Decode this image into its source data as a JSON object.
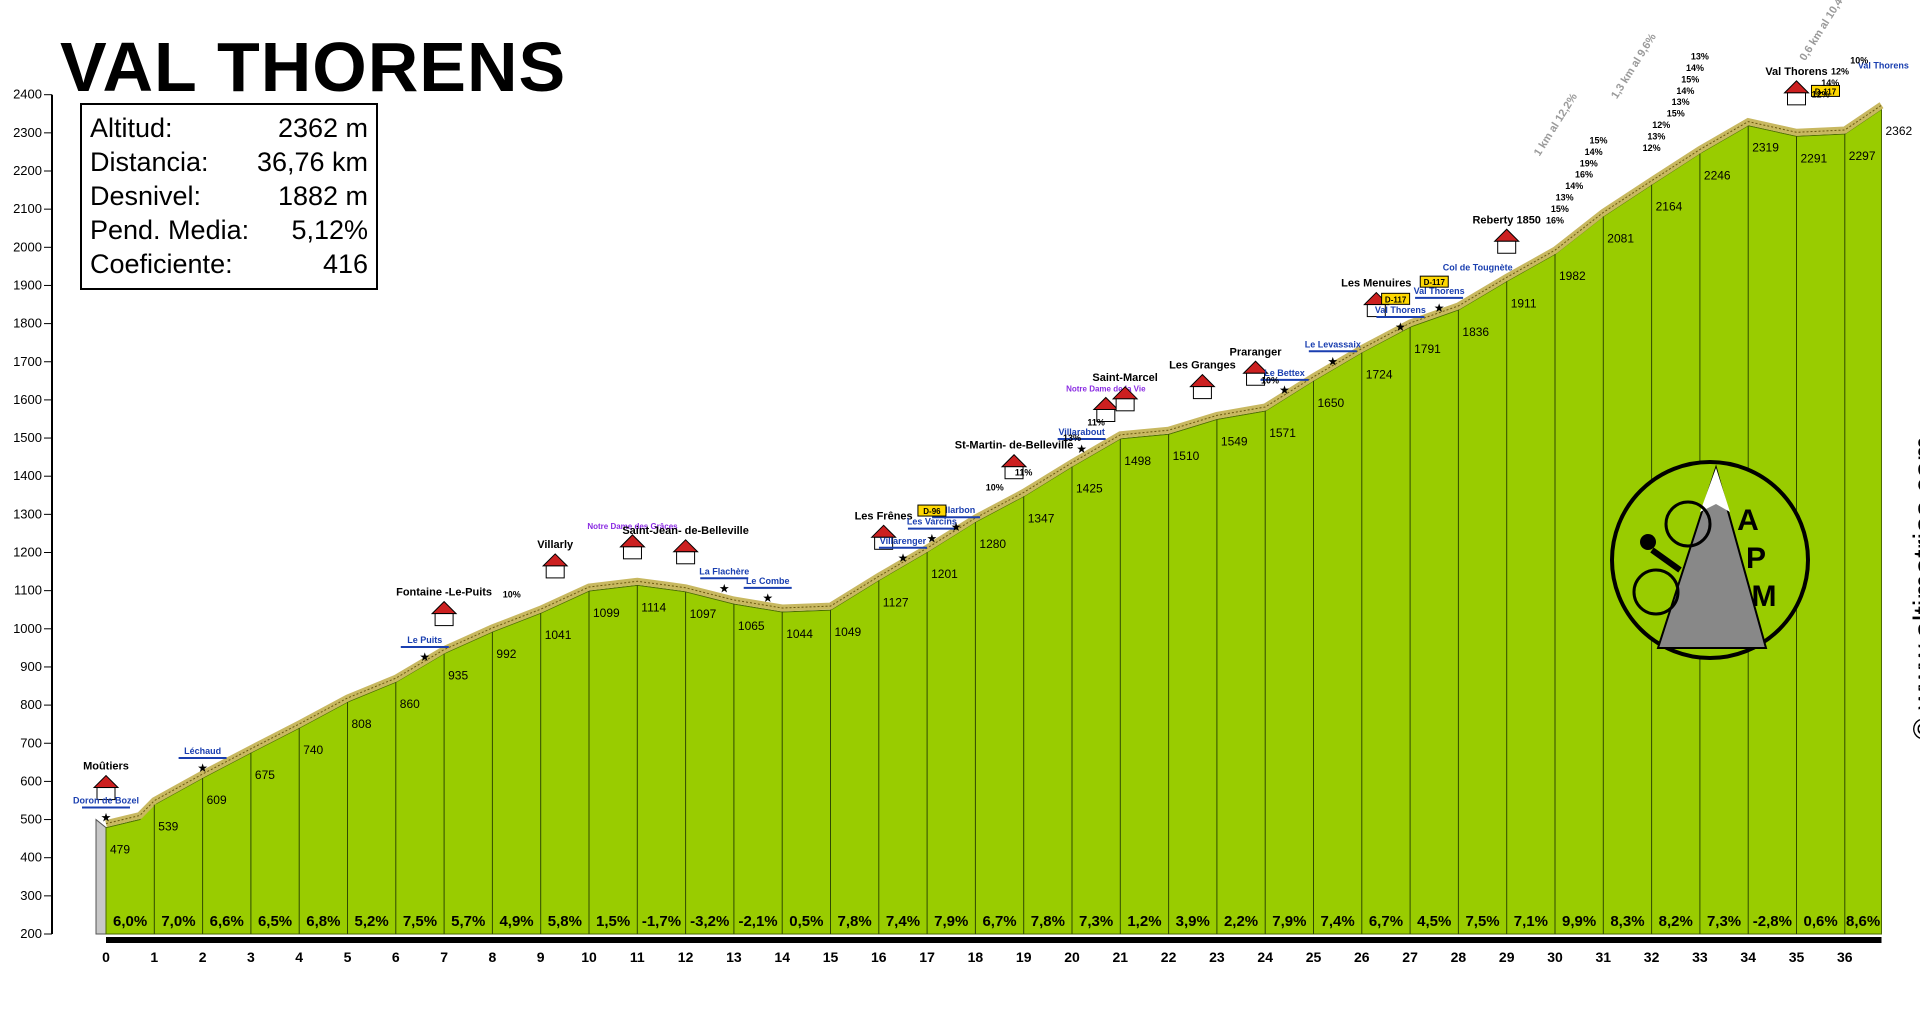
{
  "title": "VAL THORENS",
  "stats": [
    {
      "label": "Altitud:",
      "value": "2362 m"
    },
    {
      "label": "Distancia:",
      "value": "36,76 km"
    },
    {
      "label": "Desnivel:",
      "value": "1882 m"
    },
    {
      "label": "Pend. Media:",
      "value": "5,12%"
    },
    {
      "label": "Coeficiente:",
      "value": "416"
    }
  ],
  "credit": "© www.altimetrias.com",
  "logo_text": [
    "A",
    "P",
    "M"
  ],
  "colors": {
    "fill": "#99cc00",
    "road": "#c8b860",
    "axis": "#000000",
    "grid": "#000000",
    "place_blue": "#1a3fb0",
    "notre_dame": "#8a2be2",
    "steep": "#cc2222"
  },
  "chart_data": {
    "type": "area",
    "title": "VAL THORENS",
    "xlabel": "",
    "ylabel": "",
    "xlim": [
      0,
      37
    ],
    "ylim": [
      200,
      2400
    ],
    "x_ticks": [
      0,
      1,
      2,
      3,
      4,
      5,
      6,
      7,
      8,
      9,
      10,
      11,
      12,
      13,
      14,
      15,
      16,
      17,
      18,
      19,
      20,
      21,
      22,
      23,
      24,
      25,
      26,
      27,
      28,
      29,
      30,
      31,
      32,
      33,
      34,
      35,
      36
    ],
    "y_ticks": [
      200,
      300,
      400,
      500,
      600,
      700,
      800,
      900,
      1000,
      1100,
      1200,
      1300,
      1400,
      1500,
      1600,
      1700,
      1800,
      1900,
      2000,
      2100,
      2200,
      2300,
      2400
    ],
    "profile": [
      [
        0,
        479
      ],
      [
        0.7,
        500
      ],
      [
        1,
        539
      ],
      [
        2,
        609
      ],
      [
        3,
        675
      ],
      [
        4,
        740
      ],
      [
        5,
        808
      ],
      [
        6,
        860
      ],
      [
        7,
        935
      ],
      [
        8,
        992
      ],
      [
        9,
        1041
      ],
      [
        10,
        1099
      ],
      [
        11,
        1114
      ],
      [
        11.6,
        1104
      ],
      [
        12,
        1097
      ],
      [
        13,
        1065
      ],
      [
        14,
        1044
      ],
      [
        15,
        1049
      ],
      [
        16,
        1127
      ],
      [
        17,
        1201
      ],
      [
        18,
        1280
      ],
      [
        19,
        1347
      ],
      [
        20,
        1425
      ],
      [
        21,
        1498
      ],
      [
        22,
        1510
      ],
      [
        23,
        1549
      ],
      [
        24,
        1571
      ],
      [
        25,
        1650
      ],
      [
        26,
        1724
      ],
      [
        27,
        1791
      ],
      [
        28,
        1836
      ],
      [
        29,
        1911
      ],
      [
        30,
        1982
      ],
      [
        31,
        2081
      ],
      [
        32,
        2164
      ],
      [
        33,
        2246
      ],
      [
        34,
        2319
      ],
      [
        35,
        2291
      ],
      [
        36,
        2297
      ],
      [
        36.76,
        2362
      ]
    ],
    "altitude_labels": [
      {
        "x": 0,
        "label": "479"
      },
      {
        "x": 1,
        "label": "539"
      },
      {
        "x": 2,
        "label": "609"
      },
      {
        "x": 3,
        "label": "675"
      },
      {
        "x": 4,
        "label": "740"
      },
      {
        "x": 5,
        "label": "808"
      },
      {
        "x": 6,
        "label": "860"
      },
      {
        "x": 7,
        "label": "935"
      },
      {
        "x": 8,
        "label": "992"
      },
      {
        "x": 9,
        "label": "1041"
      },
      {
        "x": 10,
        "label": "1099"
      },
      {
        "x": 11,
        "label": "1114"
      },
      {
        "x": 12,
        "label": "1097"
      },
      {
        "x": 13,
        "label": "1065"
      },
      {
        "x": 14,
        "label": "1044"
      },
      {
        "x": 15,
        "label": "1049"
      },
      {
        "x": 16,
        "label": "1127"
      },
      {
        "x": 17,
        "label": "1201"
      },
      {
        "x": 18,
        "label": "1280"
      },
      {
        "x": 19,
        "label": "1347"
      },
      {
        "x": 20,
        "label": "1425"
      },
      {
        "x": 21,
        "label": "1498"
      },
      {
        "x": 22,
        "label": "1510"
      },
      {
        "x": 23,
        "label": "1549"
      },
      {
        "x": 24,
        "label": "1571"
      },
      {
        "x": 25,
        "label": "1650"
      },
      {
        "x": 26,
        "label": "1724"
      },
      {
        "x": 27,
        "label": "1791"
      },
      {
        "x": 28,
        "label": "1836"
      },
      {
        "x": 29,
        "label": "1911"
      },
      {
        "x": 30,
        "label": "1982"
      },
      {
        "x": 31,
        "label": "2081"
      },
      {
        "x": 32,
        "label": "2164"
      },
      {
        "x": 33,
        "label": "2246"
      },
      {
        "x": 34,
        "label": "2319"
      },
      {
        "x": 35,
        "label": "2291"
      },
      {
        "x": 36,
        "label": "2297"
      },
      {
        "x": 36.76,
        "label": "2362"
      }
    ],
    "gradients": [
      "6,0%",
      "7,0%",
      "6,6%",
      "6,5%",
      "6,8%",
      "5,2%",
      "7,5%",
      "5,7%",
      "4,9%",
      "5,8%",
      "1,5%",
      "-1,7%",
      "-3,2%",
      "-2,1%",
      "0,5%",
      "7,8%",
      "7,4%",
      "7,9%",
      "6,7%",
      "7,8%",
      "7,3%",
      "1,2%",
      "3,9%",
      "2,2%",
      "7,9%",
      "7,4%",
      "6,7%",
      "4,5%",
      "7,5%",
      "7,1%",
      "9,9%",
      "8,3%",
      "8,2%",
      "7,3%",
      "-2,8%",
      "0,6%",
      "8,6%"
    ],
    "places": [
      {
        "x": 0,
        "alt": 479,
        "name": "Moûtiers",
        "style": "bold"
      },
      {
        "x": 7,
        "alt": 935,
        "name": "Fontaine -Le-Puits",
        "style": "bold"
      },
      {
        "x": 9.3,
        "alt": 1060,
        "name": "Villarly",
        "style": "bold"
      },
      {
        "x": 10.9,
        "alt": 1110,
        "name": "Notre Dame des Grâces",
        "style": "purple"
      },
      {
        "x": 12,
        "alt": 1097,
        "name": "Saint-Jean- de-Belleville",
        "style": "bold"
      },
      {
        "x": 16.1,
        "alt": 1135,
        "name": "Les Frênes",
        "style": "bold"
      },
      {
        "x": 18.8,
        "alt": 1320,
        "name": "St-Martin- de-Belleville",
        "style": "bold"
      },
      {
        "x": 20.7,
        "alt": 1470,
        "name": "Notre Dame de la Vie",
        "style": "purple"
      },
      {
        "x": 21.1,
        "alt": 1498,
        "name": "Saint-Marcel",
        "style": "bold"
      },
      {
        "x": 22.7,
        "alt": 1530,
        "name": "Les Granges",
        "style": "bold"
      },
      {
        "x": 23.8,
        "alt": 1565,
        "name": "Praranger",
        "style": "bold"
      },
      {
        "x": 26.3,
        "alt": 1745,
        "name": "Les Menuires",
        "style": "bold"
      },
      {
        "x": 29,
        "alt": 1911,
        "name": "Reberty 1850",
        "style": "bold"
      },
      {
        "x": 35,
        "alt": 2300,
        "name": "Val Thorens",
        "style": "bold"
      }
    ],
    "road_signs": [
      {
        "x": 0,
        "alt": 479,
        "label": "Doron de Bozel"
      },
      {
        "x": 2,
        "alt": 609,
        "label": "Léchaud"
      },
      {
        "x": 6.6,
        "alt": 900,
        "label": "Le Puits"
      },
      {
        "x": 12.8,
        "alt": 1080,
        "label": "La Flachère"
      },
      {
        "x": 13.7,
        "alt": 1055,
        "label": "Le Combe"
      },
      {
        "x": 16.5,
        "alt": 1160,
        "label": "Villarenger"
      },
      {
        "x": 17.1,
        "alt": 1210,
        "label": "Les Varcins"
      },
      {
        "x": 17.6,
        "alt": 1240,
        "label": "Villarbon"
      },
      {
        "x": 20.2,
        "alt": 1445,
        "label": "Villarabout"
      },
      {
        "x": 24.4,
        "alt": 1600,
        "label": "Le Bettex"
      },
      {
        "x": 25.4,
        "alt": 1675,
        "label": "Le Levassaix"
      },
      {
        "x": 26.8,
        "alt": 1765,
        "label": "Val Thorens"
      },
      {
        "x": 27.6,
        "alt": 1815,
        "label": "Val Thorens"
      }
    ],
    "road_codes": [
      {
        "x": 17.1,
        "alt": 1230,
        "label": "D-96"
      },
      {
        "x": 26.7,
        "alt": 1785,
        "label": "D-117"
      },
      {
        "x": 27.5,
        "alt": 1830,
        "label": "D-117"
      },
      {
        "x": 35.6,
        "alt": 2330,
        "label": "D-117"
      }
    ],
    "misc_labels": [
      {
        "x": 28.4,
        "alt": 1860,
        "label": "Col de Tougnète"
      },
      {
        "x": 36.8,
        "alt": 2390,
        "label": "Val Thorens"
      }
    ],
    "steep_labels": [
      {
        "x": 8.4,
        "alt": 1030,
        "label": "10%"
      },
      {
        "x": 18.4,
        "alt": 1310,
        "label": "10%"
      },
      {
        "x": 19,
        "alt": 1350,
        "label": "11%"
      },
      {
        "x": 20,
        "alt": 1440,
        "label": "13%"
      },
      {
        "x": 20.5,
        "alt": 1480,
        "label": "11%"
      },
      {
        "x": 24.1,
        "alt": 1590,
        "label": "10%"
      },
      {
        "x": 30,
        "alt": 2010,
        "label": "16%"
      },
      {
        "x": 30.1,
        "alt": 2040,
        "label": "15%"
      },
      {
        "x": 30.2,
        "alt": 2070,
        "label": "13%"
      },
      {
        "x": 30.4,
        "alt": 2100,
        "label": "14%"
      },
      {
        "x": 30.6,
        "alt": 2130,
        "label": "16%"
      },
      {
        "x": 30.7,
        "alt": 2160,
        "label": "19%"
      },
      {
        "x": 30.8,
        "alt": 2190,
        "label": "14%"
      },
      {
        "x": 30.9,
        "alt": 2220,
        "label": "15%"
      },
      {
        "x": 32,
        "alt": 2200,
        "label": "12%"
      },
      {
        "x": 32.1,
        "alt": 2230,
        "label": "13%"
      },
      {
        "x": 32.2,
        "alt": 2260,
        "label": "12%"
      },
      {
        "x": 32.5,
        "alt": 2290,
        "label": "15%"
      },
      {
        "x": 32.6,
        "alt": 2320,
        "label": "13%"
      },
      {
        "x": 32.7,
        "alt": 2350,
        "label": "14%"
      },
      {
        "x": 32.8,
        "alt": 2380,
        "label": "15%"
      },
      {
        "x": 32.9,
        "alt": 2410,
        "label": "14%"
      },
      {
        "x": 33,
        "alt": 2440,
        "label": "13%"
      },
      {
        "x": 35.5,
        "alt": 2340,
        "label": "12%"
      },
      {
        "x": 35.7,
        "alt": 2370,
        "label": "14%"
      },
      {
        "x": 35.9,
        "alt": 2400,
        "label": "12%"
      },
      {
        "x": 36.3,
        "alt": 2430,
        "label": "10%"
      }
    ],
    "rotated_notes": [
      {
        "x": 30.3,
        "alt": 2080,
        "label": "1 km al 12,2%"
      },
      {
        "x": 31.9,
        "alt": 2230,
        "label": "1,3 km al 9,6%"
      },
      {
        "x": 35.8,
        "alt": 2330,
        "label": "0,6 km al 10,4%"
      }
    ]
  }
}
